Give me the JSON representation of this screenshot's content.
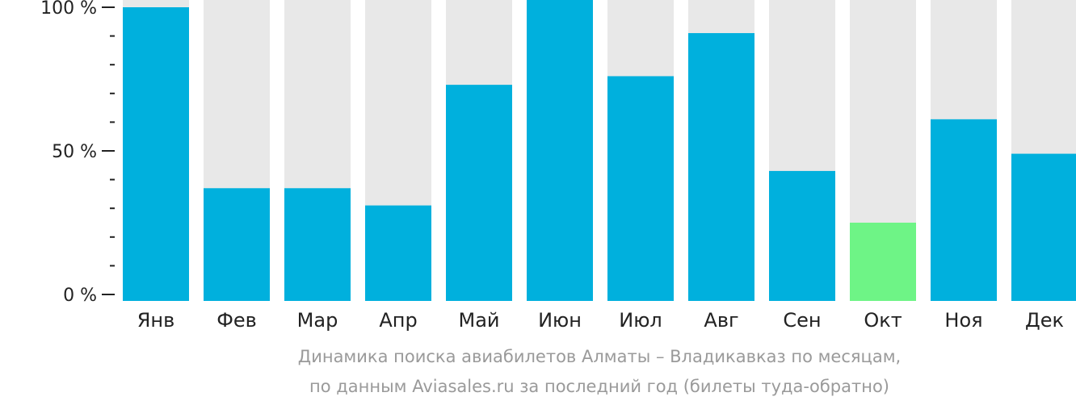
{
  "chart_data": {
    "type": "bar",
    "categories": [
      "Янв",
      "Фев",
      "Мар",
      "Апр",
      "Май",
      "Июн",
      "Июл",
      "Авг",
      "Сен",
      "Окт",
      "Ноя",
      "Дек"
    ],
    "values": [
      100,
      37,
      37,
      31,
      73,
      104,
      76,
      91,
      43,
      25,
      61,
      49
    ],
    "highlight_index": 9,
    "ylim": [
      0,
      100
    ],
    "y_ticks": [
      {
        "value": 0,
        "label": "0 %"
      },
      {
        "value": 50,
        "label": "50 %"
      },
      {
        "value": 100,
        "label": "100 %"
      }
    ],
    "y_minor_step": 10,
    "title_lines": [
      "Динамика поиска авиабилетов Алматы – Владикавказ по месяцам,",
      "по данным Aviasales.ru за последний год (билеты туда-обратно)"
    ],
    "colors": {
      "bar": "#00b0dd",
      "highlight": "#6ef486",
      "background_bar": "#e8e8e8",
      "axis": "#222222",
      "caption": "#9a9a9a"
    }
  }
}
